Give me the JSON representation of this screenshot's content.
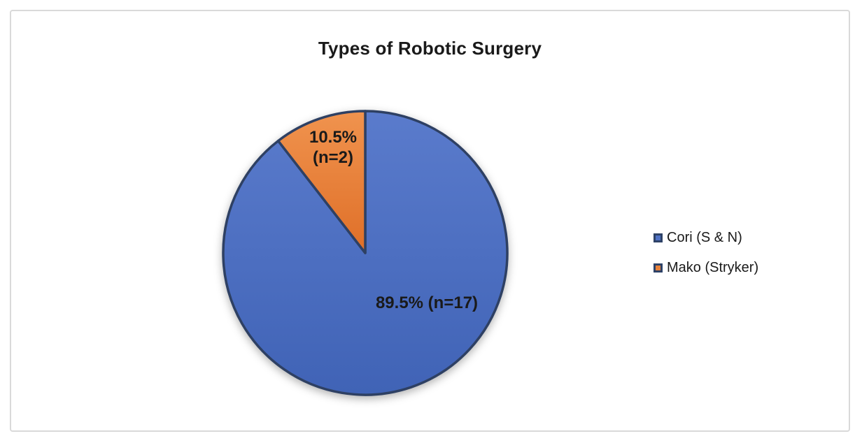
{
  "chart_data": {
    "type": "pie",
    "title": "Types of Robotic Surgery",
    "categories": [
      "Cori (S & N)",
      "Mako (Stryker)"
    ],
    "values": [
      17,
      2
    ],
    "series": [
      {
        "name": "Cori (S & N)",
        "count": 17,
        "percent": 89.5,
        "label": "89.5% (n=17)",
        "color": "#4F72C5",
        "gradient": [
          "#5A7BCC",
          "#4063B6"
        ]
      },
      {
        "name": "Mako (Stryker)",
        "count": 2,
        "percent": 10.5,
        "label": "10.5% (n=2)",
        "label_lines": [
          "10.5%",
          "(n=2)"
        ],
        "color": "#E8823A",
        "gradient": [
          "#F0934E",
          "#DF6F28"
        ]
      }
    ],
    "legend_position": "right",
    "start_angle_deg": 0,
    "direction": "clockwise"
  },
  "colors": {
    "slice_border": "#2E4063",
    "frame_border": "#D9D9D9",
    "text": "#1A1A1A",
    "background": "#FFFFFF"
  }
}
